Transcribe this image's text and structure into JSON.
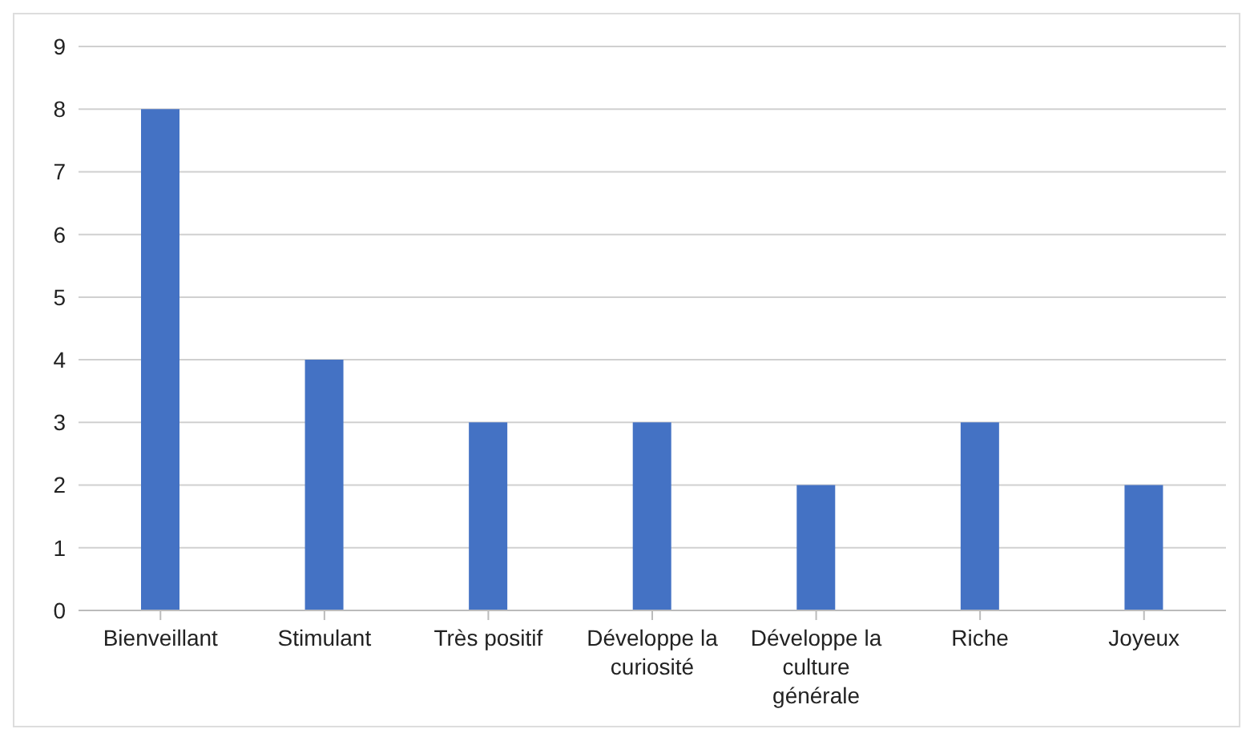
{
  "chart_data": {
    "type": "bar",
    "categories": [
      "Bienveillant",
      "Stimulant",
      "Très positif",
      "Développe la curiosité",
      "Développe la culture générale",
      "Riche",
      "Joyeux"
    ],
    "values": [
      8,
      4,
      3,
      3,
      2,
      3,
      2
    ],
    "color": "#4472c4",
    "ylim": [
      0,
      9
    ],
    "yticks": [
      0,
      1,
      2,
      3,
      4,
      5,
      6,
      7,
      8,
      9
    ],
    "grid": "y"
  }
}
